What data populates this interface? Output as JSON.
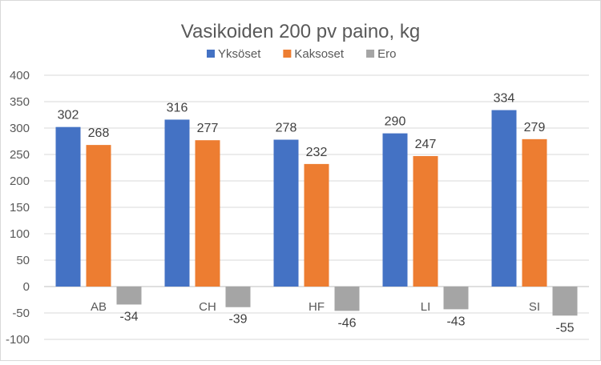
{
  "chart_data": {
    "type": "bar",
    "title": "Vasikoiden 200 pv paino, kg",
    "xlabel": "",
    "ylabel": "",
    "categories": [
      "AB",
      "CH",
      "HF",
      "LI",
      "SI"
    ],
    "series": [
      {
        "name": "Yksöset",
        "values": [
          302,
          316,
          278,
          290,
          334
        ],
        "color": "#4472C4"
      },
      {
        "name": "Kaksoset",
        "values": [
          268,
          277,
          232,
          247,
          279
        ],
        "color": "#ED7D31"
      },
      {
        "name": "Ero",
        "values": [
          -34,
          -39,
          -46,
          -43,
          -55
        ],
        "color": "#A5A5A5"
      }
    ],
    "ylim": [
      -100,
      400
    ],
    "yticks": [
      400,
      350,
      300,
      250,
      200,
      150,
      100,
      50,
      0,
      -50,
      -100
    ],
    "grid": true,
    "legend": "top",
    "data_labels": true
  }
}
